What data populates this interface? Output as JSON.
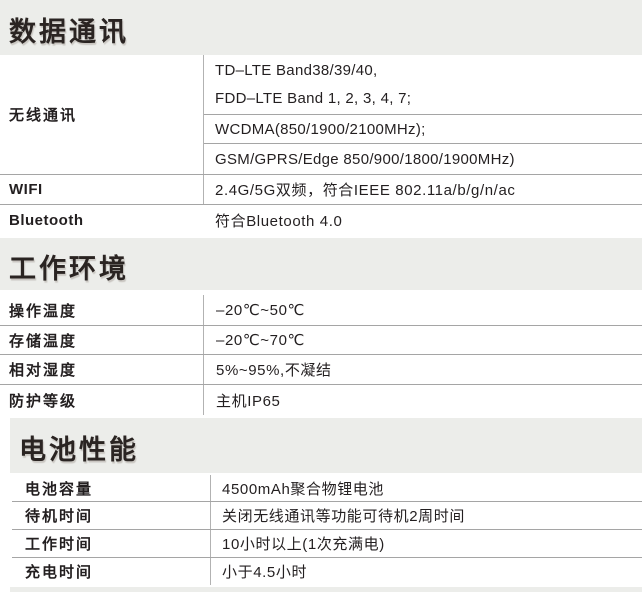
{
  "data_comm": {
    "title": "数据通讯",
    "wireless_label": "无线通讯",
    "wireless_line1": "TD–LTE Band38/39/40,",
    "wireless_line2": "FDD–LTE Band 1, 2, 3, 4, 7;",
    "wireless_wcdma": "WCDMA(850/1900/2100MHz);",
    "wireless_gsm": "GSM/GPRS/Edge 850/900/1800/1900MHz)",
    "wifi_label": "WIFI",
    "wifi_value": "2.4G/5G双频，符合IEEE 802.11a/b/g/n/ac",
    "bluetooth_label": "Bluetooth",
    "bluetooth_value": "符合Bluetooth 4.0"
  },
  "environment": {
    "title": "工作环境",
    "rows": [
      {
        "label": "操作温度",
        "value": "–20℃~50℃"
      },
      {
        "label": "存储温度",
        "value": "–20℃~70℃"
      },
      {
        "label": "相对湿度",
        "value": "5%~95%,不凝结"
      },
      {
        "label": "防护等级",
        "value": "主机IP65"
      }
    ]
  },
  "battery": {
    "title": "电池性能",
    "rows": [
      {
        "label": "电池容量",
        "value": "4500mAh聚合物锂电池"
      },
      {
        "label": "待机时间",
        "value": "关闭无线通讯等功能可待机2周时间"
      },
      {
        "label": "工作时间",
        "value": "10小时以上(1次充满电)"
      },
      {
        "label": "充电时间",
        "value": "小于4.5小时"
      }
    ]
  },
  "colors": {
    "band_bg": "#ecedea",
    "rule": "#a5a5a5",
    "text": "#231f20"
  }
}
